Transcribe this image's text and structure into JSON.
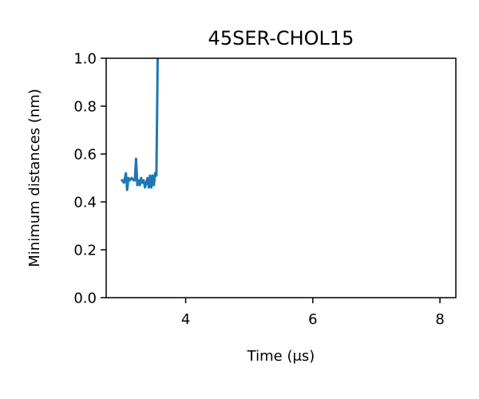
{
  "chart_data": {
    "type": "line",
    "title": "45SER-CHOL15",
    "xlabel": "Time (μs)",
    "ylabel": "Minimum distances (nm)",
    "xlim": [
      2.75,
      8.25
    ],
    "ylim": [
      0.0,
      1.0
    ],
    "xticks": [
      4,
      6,
      8
    ],
    "yticks": [
      0.0,
      0.2,
      0.4,
      0.6,
      0.8,
      1.0
    ],
    "xtick_labels": [
      "4",
      "6",
      "8"
    ],
    "ytick_labels": [
      "0.0",
      "0.2",
      "0.4",
      "0.6",
      "0.8",
      "1.0"
    ],
    "grid": false,
    "series": [
      {
        "color": "#1f77b4",
        "x": [
          3.0,
          3.03,
          3.06,
          3.08,
          3.1,
          3.12,
          3.15,
          3.18,
          3.2,
          3.22,
          3.24,
          3.26,
          3.28,
          3.3,
          3.32,
          3.34,
          3.36,
          3.38,
          3.4,
          3.42,
          3.44,
          3.46,
          3.48,
          3.5,
          3.52,
          3.54,
          3.55,
          3.56
        ],
        "y": [
          0.49,
          0.48,
          0.52,
          0.45,
          0.5,
          0.49,
          0.5,
          0.49,
          0.49,
          0.58,
          0.47,
          0.49,
          0.47,
          0.5,
          0.48,
          0.49,
          0.46,
          0.48,
          0.5,
          0.46,
          0.51,
          0.46,
          0.51,
          0.47,
          0.52,
          0.51,
          0.75,
          1.0
        ]
      }
    ]
  }
}
